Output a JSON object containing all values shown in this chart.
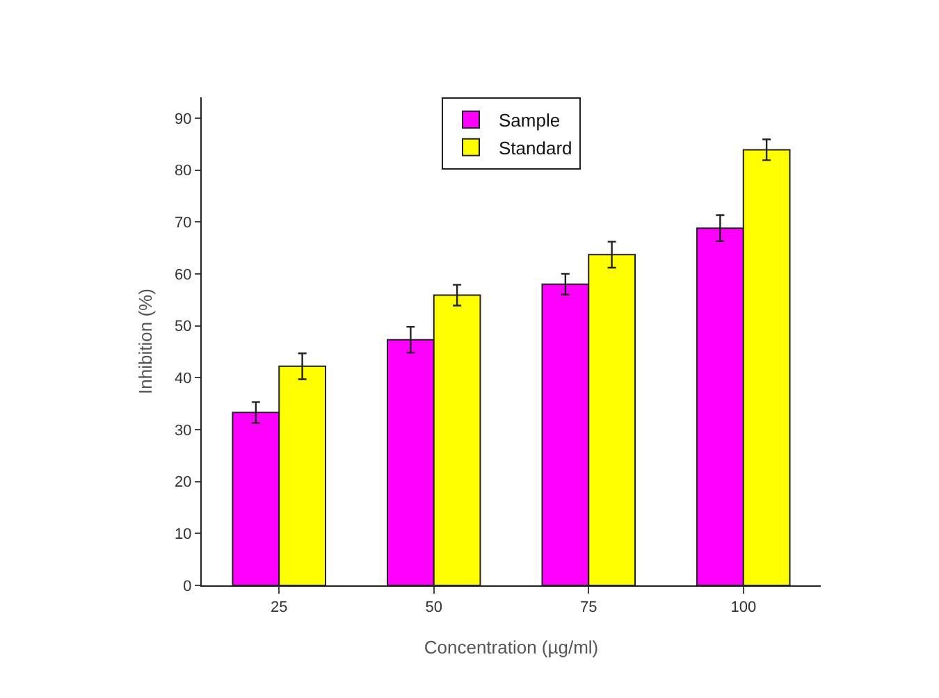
{
  "chart_data": {
    "type": "bar",
    "xlabel": "Concentration (µg/ml)",
    "ylabel": "Inhibition (%)",
    "categories": [
      "25",
      "50",
      "75",
      "100"
    ],
    "series": [
      {
        "name": "Sample",
        "color": "#ff00ff",
        "values": [
          33.3,
          47.3,
          58,
          68.8
        ],
        "errors": [
          2,
          2.5,
          2,
          2.5
        ]
      },
      {
        "name": "Standard",
        "color": "#ffff00",
        "values": [
          42.2,
          55.9,
          63.7,
          83.9
        ],
        "errors": [
          2.5,
          2,
          2.5,
          2
        ]
      }
    ],
    "ylim": [
      0,
      94
    ],
    "yticks": [
      0,
      10,
      20,
      30,
      40,
      50,
      60,
      70,
      80,
      90
    ],
    "grid": false,
    "legend": "top"
  }
}
